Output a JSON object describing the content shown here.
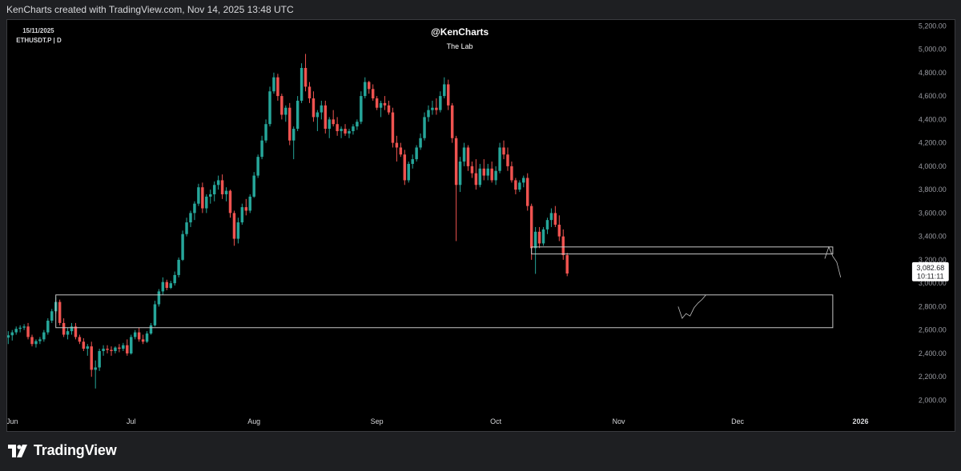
{
  "header": {
    "caption": "KenCharts created with TradingView.com, Nov 14, 2025 13:48 UTC"
  },
  "chart_info": {
    "date": "15/11/2025",
    "symbol": "ETHUSDT.P | D",
    "author": "@KenCharts",
    "subtitle": "The Lab"
  },
  "price_label": {
    "price": "3,082.68",
    "countdown": "10:11:11"
  },
  "footer": {
    "brand": "TradingView"
  },
  "colors": {
    "up": "#26a69a",
    "down": "#ef5350",
    "background": "#000000",
    "axis_text": "#9a9ca3",
    "zone": "#c8c8c8"
  },
  "chart_data": {
    "type": "candlestick",
    "x_tick_labels": [
      "Jun",
      "Jul",
      "Aug",
      "Sep",
      "Oct",
      "Nov",
      "Dec",
      "2026"
    ],
    "y_tick_labels": [
      "2,000.00",
      "2,200.00",
      "2,400.00",
      "2,600.00",
      "2,800.00",
      "3,000.00",
      "3,200.00",
      "3,400.00",
      "3,600.00",
      "3,800.00",
      "4,000.00",
      "4,200.00",
      "4,400.00",
      "4,600.00",
      "4,800.00",
      "5,000.00",
      "5,200.00"
    ],
    "ylim": [
      1900,
      5250
    ],
    "xlim": [
      "2025-05-31",
      "2026-01-13"
    ],
    "y_ticks": [
      2000,
      2200,
      2400,
      2600,
      2800,
      3000,
      3200,
      3400,
      3600,
      3800,
      4000,
      4200,
      4400,
      4600,
      4800,
      5000,
      5200
    ],
    "x_ticks": [
      "2025-06-01",
      "2025-07-01",
      "2025-08-01",
      "2025-09-01",
      "2025-10-01",
      "2025-11-01",
      "2025-12-01",
      "2026-01-01"
    ],
    "start_date": "2025-05-31",
    "series": [
      {
        "values_ohlc": [
          [
            2535,
            2590,
            2480,
            2555
          ],
          [
            2555,
            2600,
            2510,
            2580
          ],
          [
            2580,
            2630,
            2560,
            2610
          ],
          [
            2610,
            2640,
            2580,
            2620
          ],
          [
            2620,
            2650,
            2600,
            2630
          ],
          [
            2630,
            2660,
            2520,
            2540
          ],
          [
            2540,
            2560,
            2460,
            2480
          ],
          [
            2480,
            2520,
            2450,
            2505
          ],
          [
            2505,
            2540,
            2480,
            2520
          ],
          [
            2520,
            2600,
            2500,
            2580
          ],
          [
            2580,
            2700,
            2560,
            2680
          ],
          [
            2680,
            2780,
            2660,
            2760
          ],
          [
            2760,
            2880,
            2740,
            2840
          ],
          [
            2840,
            2860,
            2640,
            2660
          ],
          [
            2660,
            2700,
            2540,
            2560
          ],
          [
            2560,
            2620,
            2520,
            2590
          ],
          [
            2590,
            2660,
            2560,
            2630
          ],
          [
            2630,
            2660,
            2520,
            2540
          ],
          [
            2540,
            2560,
            2480,
            2500
          ],
          [
            2500,
            2530,
            2420,
            2440
          ],
          [
            2440,
            2480,
            2380,
            2460
          ],
          [
            2460,
            2500,
            2200,
            2260
          ],
          [
            2260,
            2340,
            2100,
            2280
          ],
          [
            2280,
            2440,
            2250,
            2420
          ],
          [
            2420,
            2470,
            2380,
            2440
          ],
          [
            2440,
            2470,
            2400,
            2430
          ],
          [
            2430,
            2460,
            2380,
            2420
          ],
          [
            2420,
            2460,
            2400,
            2450
          ],
          [
            2450,
            2480,
            2410,
            2440
          ],
          [
            2440,
            2490,
            2420,
            2470
          ],
          [
            2470,
            2520,
            2380,
            2400
          ],
          [
            2400,
            2560,
            2390,
            2540
          ],
          [
            2540,
            2600,
            2520,
            2580
          ],
          [
            2580,
            2620,
            2500,
            2520
          ],
          [
            2520,
            2560,
            2480,
            2500
          ],
          [
            2500,
            2590,
            2490,
            2570
          ],
          [
            2570,
            2660,
            2560,
            2640
          ],
          [
            2640,
            2850,
            2630,
            2820
          ],
          [
            2820,
            2950,
            2800,
            2930
          ],
          [
            2930,
            3050,
            2900,
            3010
          ],
          [
            3010,
            3030,
            2940,
            2960
          ],
          [
            2960,
            3020,
            2950,
            3000
          ],
          [
            3000,
            3100,
            2980,
            3070
          ],
          [
            3070,
            3220,
            3050,
            3200
          ],
          [
            3200,
            3450,
            3190,
            3420
          ],
          [
            3420,
            3560,
            3400,
            3520
          ],
          [
            3520,
            3620,
            3480,
            3600
          ],
          [
            3600,
            3700,
            3540,
            3680
          ],
          [
            3680,
            3850,
            3660,
            3820
          ],
          [
            3820,
            3860,
            3600,
            3640
          ],
          [
            3640,
            3760,
            3600,
            3740
          ],
          [
            3740,
            3800,
            3680,
            3760
          ],
          [
            3760,
            3870,
            3700,
            3840
          ],
          [
            3840,
            3920,
            3800,
            3880
          ],
          [
            3880,
            3930,
            3720,
            3760
          ],
          [
            3760,
            3820,
            3700,
            3790
          ],
          [
            3790,
            3800,
            3560,
            3600
          ],
          [
            3600,
            3620,
            3320,
            3380
          ],
          [
            3380,
            3560,
            3340,
            3520
          ],
          [
            3520,
            3680,
            3500,
            3650
          ],
          [
            3650,
            3720,
            3580,
            3620
          ],
          [
            3620,
            3760,
            3600,
            3740
          ],
          [
            3740,
            3950,
            3730,
            3920
          ],
          [
            3920,
            4100,
            3900,
            4080
          ],
          [
            4080,
            4260,
            4060,
            4220
          ],
          [
            4220,
            4400,
            4200,
            4360
          ],
          [
            4360,
            4680,
            4340,
            4640
          ],
          [
            4640,
            4800,
            4620,
            4760
          ],
          [
            4760,
            4790,
            4560,
            4600
          ],
          [
            4600,
            4620,
            4400,
            4440
          ],
          [
            4440,
            4520,
            4380,
            4500
          ],
          [
            4500,
            4540,
            4180,
            4220
          ],
          [
            4220,
            4340,
            4060,
            4320
          ],
          [
            4320,
            4600,
            4300,
            4560
          ],
          [
            4560,
            4880,
            4540,
            4840
          ],
          [
            4840,
            4960,
            4640,
            4680
          ],
          [
            4680,
            4720,
            4540,
            4580
          ],
          [
            4580,
            4640,
            4380,
            4420
          ],
          [
            4420,
            4480,
            4300,
            4460
          ],
          [
            4460,
            4560,
            4400,
            4520
          ],
          [
            4520,
            4560,
            4280,
            4320
          ],
          [
            4320,
            4420,
            4240,
            4400
          ],
          [
            4400,
            4480,
            4340,
            4360
          ],
          [
            4360,
            4420,
            4260,
            4300
          ],
          [
            4300,
            4340,
            4240,
            4320
          ],
          [
            4320,
            4360,
            4260,
            4280
          ],
          [
            4280,
            4320,
            4240,
            4300
          ],
          [
            4300,
            4360,
            4270,
            4340
          ],
          [
            4340,
            4400,
            4310,
            4380
          ],
          [
            4380,
            4640,
            4360,
            4600
          ],
          [
            4600,
            4760,
            4580,
            4720
          ],
          [
            4720,
            4730,
            4620,
            4660
          ],
          [
            4660,
            4700,
            4560,
            4580
          ],
          [
            4580,
            4600,
            4480,
            4500
          ],
          [
            4500,
            4560,
            4420,
            4540
          ],
          [
            4540,
            4600,
            4480,
            4520
          ],
          [
            4520,
            4560,
            4440,
            4460
          ],
          [
            4460,
            4500,
            4160,
            4200
          ],
          [
            4200,
            4260,
            4040,
            4160
          ],
          [
            4160,
            4200,
            4080,
            4100
          ],
          [
            4100,
            4140,
            3840,
            3880
          ],
          [
            3880,
            4040,
            3860,
            4020
          ],
          [
            4020,
            4100,
            3980,
            4060
          ],
          [
            4060,
            4180,
            4040,
            4160
          ],
          [
            4160,
            4280,
            4140,
            4240
          ],
          [
            4240,
            4460,
            4220,
            4420
          ],
          [
            4420,
            4520,
            4380,
            4480
          ],
          [
            4480,
            4560,
            4440,
            4500
          ],
          [
            4500,
            4580,
            4440,
            4480
          ],
          [
            4480,
            4640,
            4460,
            4600
          ],
          [
            4600,
            4760,
            4580,
            4700
          ],
          [
            4700,
            4740,
            4480,
            4520
          ],
          [
            4520,
            4540,
            4200,
            4240
          ],
          [
            4240,
            4260,
            3360,
            3840
          ],
          [
            3840,
            4080,
            3780,
            4040
          ],
          [
            4040,
            4200,
            4000,
            4160
          ],
          [
            4160,
            4180,
            3960,
            4000
          ],
          [
            4000,
            4040,
            3900,
            3940
          ],
          [
            3940,
            4060,
            3800,
            3840
          ],
          [
            3840,
            4020,
            3820,
            3980
          ],
          [
            3980,
            4060,
            3880,
            3920
          ],
          [
            3920,
            4020,
            3880,
            3980
          ],
          [
            3980,
            4040,
            3860,
            3880
          ],
          [
            3880,
            4000,
            3840,
            3960
          ],
          [
            3960,
            4200,
            3940,
            4160
          ],
          [
            4160,
            4220,
            4060,
            4100
          ],
          [
            4100,
            4160,
            3960,
            4000
          ],
          [
            4000,
            4040,
            3860,
            3880
          ],
          [
            3880,
            3900,
            3760,
            3800
          ],
          [
            3800,
            3880,
            3780,
            3860
          ],
          [
            3860,
            3920,
            3820,
            3900
          ],
          [
            3900,
            3940,
            3620,
            3660
          ],
          [
            3660,
            3680,
            3200,
            3300
          ],
          [
            3300,
            3480,
            3080,
            3440
          ],
          [
            3440,
            3480,
            3300,
            3340
          ],
          [
            3340,
            3480,
            3320,
            3460
          ],
          [
            3460,
            3560,
            3420,
            3540
          ],
          [
            3540,
            3640,
            3480,
            3600
          ],
          [
            3600,
            3660,
            3480,
            3500
          ],
          [
            3500,
            3580,
            3360,
            3400
          ],
          [
            3400,
            3460,
            3200,
            3240
          ],
          [
            3240,
            3260,
            3060,
            3083
          ]
        ]
      }
    ],
    "annotations": {
      "support_zone_upper": {
        "date_from": "2025-10-10",
        "date_to": "2025-12-25",
        "price_low": 3250,
        "price_high": 3310
      },
      "support_zone_lower": {
        "date_from": "2025-06-12",
        "date_to": "2025-12-25",
        "price_low": 2620,
        "price_high": 2900
      },
      "path_left": [
        [
          "2025-11-16",
          2800
        ],
        [
          "2025-11-17",
          2700
        ],
        [
          "2025-11-18",
          2740
        ],
        [
          "2025-11-19",
          2720
        ],
        [
          "2025-11-20",
          2790
        ],
        [
          "2025-11-21",
          2830
        ],
        [
          "2025-11-22",
          2860
        ],
        [
          "2025-11-23",
          2900
        ]
      ],
      "path_right": [
        [
          "2025-12-23",
          3210
        ],
        [
          "2025-12-24",
          3310
        ],
        [
          "2025-12-25",
          3230
        ],
        [
          "2025-12-26",
          3180
        ],
        [
          "2025-12-27",
          3050
        ]
      ]
    }
  }
}
